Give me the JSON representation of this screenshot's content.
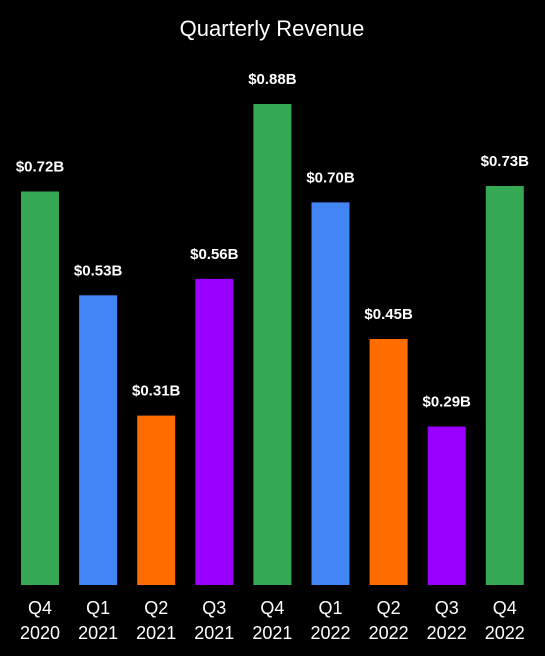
{
  "chart_data": {
    "type": "bar",
    "title": "Quarterly Revenue",
    "xlabel": "",
    "ylabel": "",
    "ylim": [
      0,
      0.88
    ],
    "grid": false,
    "legend": "none",
    "unit": "$B",
    "categories": [
      [
        "Q4",
        "2020"
      ],
      [
        "Q1",
        "2021"
      ],
      [
        "Q2",
        "2021"
      ],
      [
        "Q3",
        "2021"
      ],
      [
        "Q4",
        "2021"
      ],
      [
        "Q1",
        "2022"
      ],
      [
        "Q2",
        "2022"
      ],
      [
        "Q3",
        "2022"
      ],
      [
        "Q4",
        "2022"
      ]
    ],
    "values": [
      0.72,
      0.53,
      0.31,
      0.56,
      0.88,
      0.7,
      0.45,
      0.29,
      0.73
    ],
    "value_labels": [
      "$0.72B",
      "$0.53B",
      "$0.31B",
      "$0.56B",
      "$0.88B",
      "$0.70B",
      "$0.45B",
      "$0.29B",
      "$0.73B"
    ],
    "quarter_colors": {
      "Q1": "#4285f4",
      "Q2": "#ff6d00",
      "Q3": "#9900ff",
      "Q4": "#34a853"
    },
    "background_color": "#000000",
    "text_color": "#ffffff"
  }
}
